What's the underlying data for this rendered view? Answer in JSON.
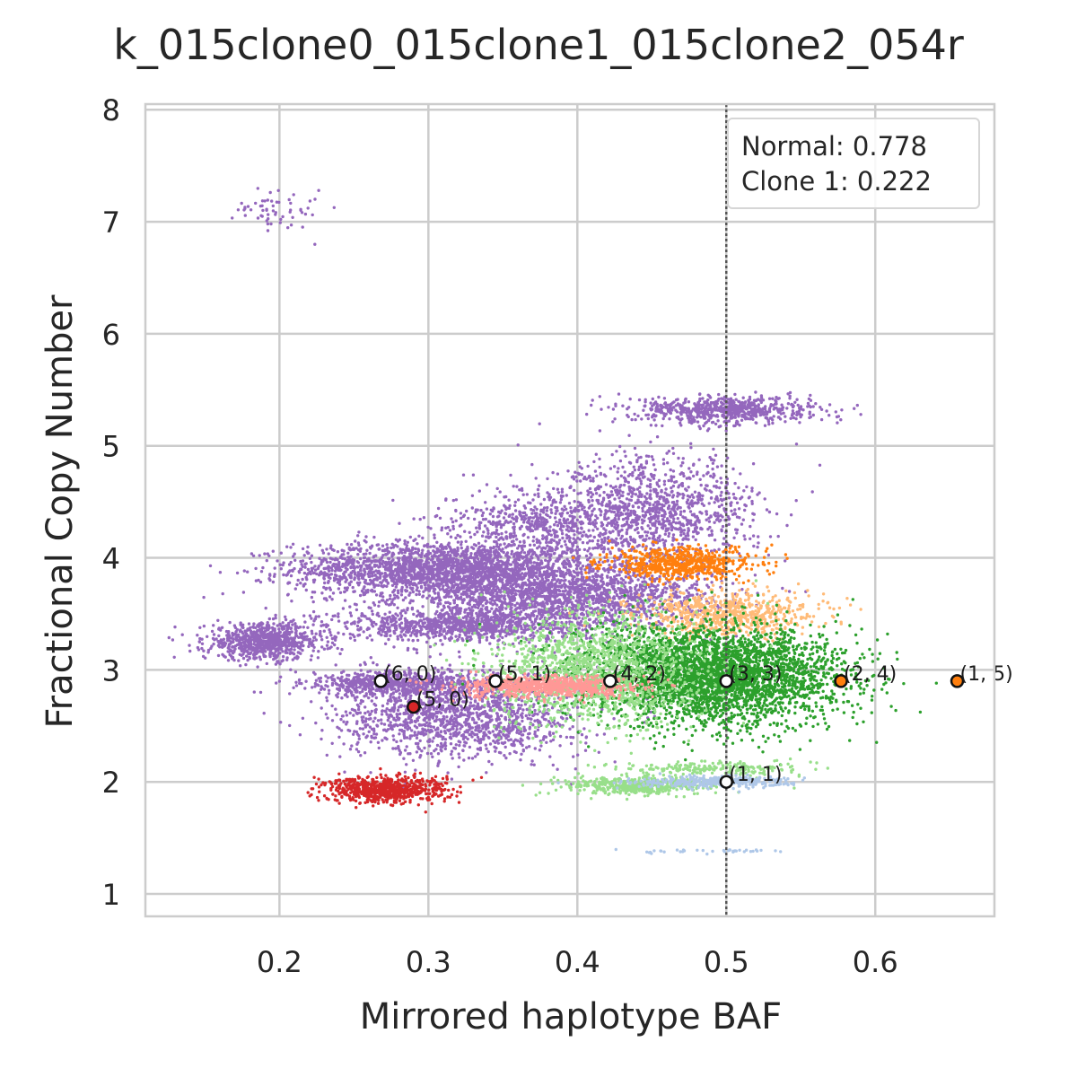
{
  "chart_data": {
    "type": "scatter",
    "title": "k_015clone0_015clone1_015clone2_054r",
    "xlabel": "Mirrored haplotype BAF",
    "ylabel": "Fractional Copy Number",
    "xlim": [
      0.11,
      0.68
    ],
    "ylim": [
      0.8,
      8.05
    ],
    "xticks": [
      "0.2",
      "0.3",
      "0.4",
      "0.5",
      "0.6"
    ],
    "yticks": [
      "1",
      "2",
      "3",
      "4",
      "5",
      "6",
      "7",
      "8"
    ],
    "grid": true,
    "reference_line": {
      "x": 0.5,
      "style": "dotted"
    },
    "legend": {
      "position": "top-right",
      "lines": [
        "Normal: 0.778",
        "Clone 1: 0.222"
      ]
    },
    "clusters": [
      {
        "color": "#9467bd",
        "points": 2200,
        "cx": 0.31,
        "cy": 3.9,
        "sx": 0.05,
        "sy": 0.12
      },
      {
        "color": "#9467bd",
        "points": 800,
        "cx": 0.19,
        "cy": 3.25,
        "sx": 0.02,
        "sy": 0.08
      },
      {
        "color": "#9467bd",
        "points": 1800,
        "cx": 0.39,
        "cy": 3.65,
        "sx": 0.05,
        "sy": 0.14
      },
      {
        "color": "#9467bd",
        "points": 900,
        "cx": 0.32,
        "cy": 3.4,
        "sx": 0.04,
        "sy": 0.07
      },
      {
        "color": "#9467bd",
        "points": 1500,
        "cx": 0.32,
        "cy": 2.6,
        "sx": 0.04,
        "sy": 0.2
      },
      {
        "color": "#9467bd",
        "points": 600,
        "cx": 0.28,
        "cy": 2.88,
        "sx": 0.03,
        "sy": 0.05
      },
      {
        "color": "#9467bd",
        "points": 1200,
        "cx": 0.45,
        "cy": 4.4,
        "sx": 0.035,
        "sy": 0.25
      },
      {
        "color": "#9467bd",
        "points": 700,
        "cx": 0.5,
        "cy": 5.32,
        "sx": 0.03,
        "sy": 0.06
      },
      {
        "color": "#9467bd",
        "points": 500,
        "cx": 0.37,
        "cy": 4.3,
        "sx": 0.03,
        "sy": 0.15
      },
      {
        "color": "#9467bd",
        "points": 60,
        "cx": 0.2,
        "cy": 7.1,
        "sx": 0.015,
        "sy": 0.1
      },
      {
        "color": "#ff7f0e",
        "points": 600,
        "cx": 0.47,
        "cy": 3.95,
        "sx": 0.025,
        "sy": 0.07
      },
      {
        "color": "#ffbb78",
        "points": 700,
        "cx": 0.5,
        "cy": 3.5,
        "sx": 0.03,
        "sy": 0.1
      },
      {
        "color": "#2ca02c",
        "points": 3500,
        "cx": 0.49,
        "cy": 2.95,
        "sx": 0.045,
        "sy": 0.22
      },
      {
        "color": "#98df8a",
        "points": 1400,
        "cx": 0.41,
        "cy": 3.0,
        "sx": 0.035,
        "sy": 0.25
      },
      {
        "color": "#98df8a",
        "points": 500,
        "cx": 0.44,
        "cy": 1.97,
        "sx": 0.025,
        "sy": 0.04
      },
      {
        "color": "#98df8a",
        "points": 200,
        "cx": 0.49,
        "cy": 2.12,
        "sx": 0.03,
        "sy": 0.03
      },
      {
        "color": "#ff9896",
        "points": 700,
        "cx": 0.38,
        "cy": 2.85,
        "sx": 0.03,
        "sy": 0.05
      },
      {
        "color": "#aec7e8",
        "points": 350,
        "cx": 0.49,
        "cy": 2.0,
        "sx": 0.025,
        "sy": 0.025
      },
      {
        "color": "#aec7e8",
        "points": 40,
        "cx": 0.49,
        "cy": 1.38,
        "sx": 0.03,
        "sy": 0.01
      },
      {
        "color": "#d62728",
        "points": 700,
        "cx": 0.27,
        "cy": 1.93,
        "sx": 0.02,
        "sy": 0.06
      }
    ],
    "markers": [
      {
        "label": "(6, 0)",
        "x": 0.268,
        "y": 2.9,
        "fill": "#ffffff"
      },
      {
        "label": "(5, 0)",
        "x": 0.29,
        "y": 2.67,
        "fill": "#d62728"
      },
      {
        "label": "(5, 1)",
        "x": 0.345,
        "y": 2.9,
        "fill": "#ffffff"
      },
      {
        "label": "(4, 2)",
        "x": 0.422,
        "y": 2.9,
        "fill": "#ffffff"
      },
      {
        "label": "(3, 3)",
        "x": 0.5,
        "y": 2.9,
        "fill": "#ffffff"
      },
      {
        "label": "(2, 4)",
        "x": 0.577,
        "y": 2.9,
        "fill": "#ff7f0e"
      },
      {
        "label": "(1, 5)",
        "x": 0.655,
        "y": 2.9,
        "fill": "#ff7f0e"
      },
      {
        "label": "(1, 1)",
        "x": 0.5,
        "y": 2.0,
        "fill": "#ffffff"
      }
    ]
  }
}
